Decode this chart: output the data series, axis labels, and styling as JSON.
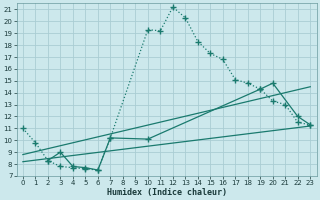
{
  "xlabel": "Humidex (Indice chaleur)",
  "bg_color": "#cce8ec",
  "grid_color": "#aacdd4",
  "line_color": "#1a7a6e",
  "xlim": [
    -0.5,
    23.5
  ],
  "ylim": [
    7,
    21.5
  ],
  "xticks": [
    0,
    1,
    2,
    3,
    4,
    5,
    6,
    7,
    8,
    9,
    10,
    11,
    12,
    13,
    14,
    15,
    16,
    17,
    18,
    19,
    20,
    21,
    22,
    23
  ],
  "yticks": [
    7,
    8,
    9,
    10,
    11,
    12,
    13,
    14,
    15,
    16,
    17,
    18,
    19,
    20,
    21
  ],
  "line1_x": [
    0,
    1,
    2,
    3,
    4,
    5,
    6,
    7,
    10,
    11,
    12,
    13,
    14,
    15,
    16,
    17,
    18,
    19,
    20,
    21,
    22,
    23
  ],
  "line1_y": [
    11.0,
    9.8,
    8.3,
    7.8,
    7.7,
    7.6,
    7.5,
    10.2,
    19.3,
    19.2,
    21.2,
    20.3,
    18.3,
    17.3,
    16.8,
    15.1,
    14.8,
    14.3,
    13.3,
    13.0,
    11.5,
    11.3
  ],
  "line2_x": [
    0,
    23
  ],
  "line2_y": [
    8.2,
    11.2
  ],
  "line3_x": [
    0,
    23
  ],
  "line3_y": [
    8.8,
    14.5
  ],
  "line4_x": [
    2,
    3,
    4,
    5,
    6,
    7,
    10,
    19,
    20,
    22,
    23
  ],
  "line4_y": [
    8.3,
    9.0,
    7.8,
    7.7,
    7.5,
    10.2,
    10.1,
    14.3,
    14.8,
    12.0,
    11.3
  ]
}
